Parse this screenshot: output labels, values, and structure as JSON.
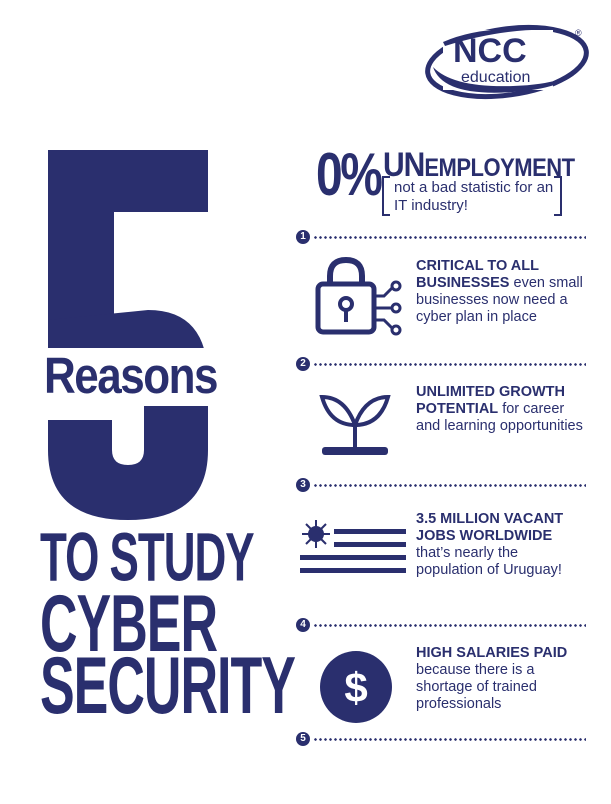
{
  "logo": {
    "brand": "NCC",
    "sub": "education",
    "mark": "®"
  },
  "title": {
    "number": "5",
    "reasons": "Reasons",
    "line1": "TO STUDY",
    "line2": "CYBER",
    "line3": "SECURITY"
  },
  "stat": {
    "value": "0%",
    "un": "UN",
    "employment": "EMPLOYMENT",
    "note": "not a bad statistic for an IT industry!"
  },
  "dividers": [
    "1",
    "2",
    "3",
    "4",
    "5"
  ],
  "reasons": [
    {
      "bold": "CRITICAL TO ALL BUSINESSES",
      "rest": " even small businesses now need a cyber plan in place",
      "icon": "lock-circuit-icon"
    },
    {
      "bold": "UNLIMITED GROWTH POTENTIAL",
      "rest": " for career and learning opportunities",
      "icon": "sprout-icon"
    },
    {
      "bold": "3.5 MILLION VACANT JOBS WORLDWIDE",
      "rest": " that’s nearly the population of Uruguay!",
      "icon": "uruguay-flag-icon"
    },
    {
      "bold": "HIGH SALARIES PAID",
      "rest": " because there is a shortage of trained professionals",
      "icon": "dollar-coin-icon"
    }
  ],
  "colors": {
    "navy": "#2a2f6e",
    "background": "#ffffff"
  }
}
